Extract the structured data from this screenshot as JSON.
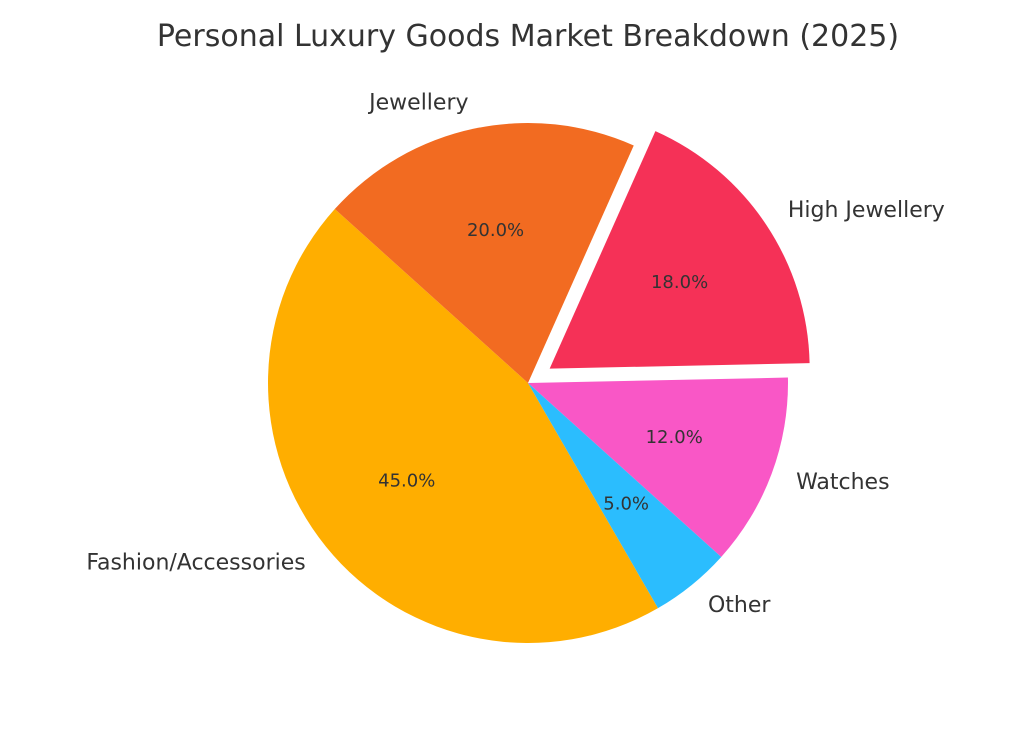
{
  "chart_data": {
    "type": "pie",
    "title": "Personal Luxury Goods Market Breakdown (2025)",
    "slices": [
      {
        "label": "Fashion/Accessories",
        "value": 45.0,
        "pct_label": "45.0%",
        "color": "#FFAE00",
        "explode": false
      },
      {
        "label": "Jewellery",
        "value": 20.0,
        "pct_label": "20.0%",
        "color": "#F26B21",
        "explode": false
      },
      {
        "label": "High Jewellery",
        "value": 18.0,
        "pct_label": "18.0%",
        "color": "#F53157",
        "explode": true
      },
      {
        "label": "Watches",
        "value": 12.0,
        "pct_label": "12.0%",
        "color": "#F957C6",
        "explode": false
      },
      {
        "label": "Other",
        "value": 5.0,
        "pct_label": "5.0%",
        "color": "#2BBDFE",
        "explode": false
      }
    ],
    "legend": "none"
  }
}
